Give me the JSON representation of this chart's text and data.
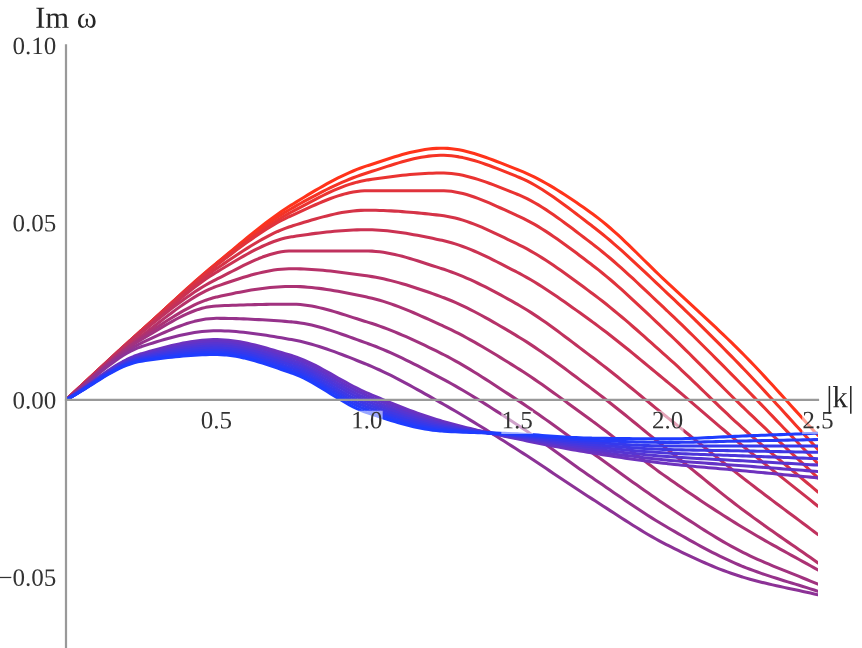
{
  "chart_data": {
    "type": "line",
    "xlabel": "|k|",
    "ylabel": "Im ω",
    "x": [
      0,
      0.25,
      0.5,
      0.75,
      1.0,
      1.25,
      1.5,
      1.75,
      2.0,
      2.25,
      2.5
    ],
    "xlim": [
      0,
      2.5
    ],
    "ylim": [
      -0.07,
      0.1
    ],
    "xticks": [
      {
        "value": 0.5,
        "label": "0.5"
      },
      {
        "value": 1.0,
        "label": "1.0"
      },
      {
        "value": 1.5,
        "label": "1.5"
      },
      {
        "value": 2.0,
        "label": "2.0"
      },
      {
        "value": 2.5,
        "label": "2.5"
      }
    ],
    "yticks": [
      {
        "value": -0.05,
        "label": "−0.05"
      },
      {
        "value": 0.0,
        "label": "0.00"
      },
      {
        "value": 0.05,
        "label": "0.05"
      },
      {
        "value": 0.1,
        "label": "0.10"
      }
    ],
    "grid": false,
    "legend": false,
    "marker": "none",
    "line_style": "solid",
    "series": [
      {
        "color": "#ff331a",
        "values": [
          0,
          0.0195,
          0.0385,
          0.055,
          0.066,
          0.071,
          0.065,
          0.0525,
          0.033,
          0.013,
          -0.01
        ]
      },
      {
        "color": "#f53325",
        "values": [
          0,
          0.0195,
          0.0385,
          0.054,
          0.064,
          0.069,
          0.063,
          0.049,
          0.03,
          0.009,
          -0.014
        ]
      },
      {
        "color": "#ea3331",
        "values": [
          0,
          0.0195,
          0.038,
          0.053,
          0.062,
          0.064,
          0.058,
          0.044,
          0.025,
          0.004,
          -0.018
        ]
      },
      {
        "color": "#e0333c",
        "values": [
          0,
          0.0195,
          0.038,
          0.052,
          0.059,
          0.059,
          0.052,
          0.038,
          0.019,
          -0.002,
          -0.022
        ]
      },
      {
        "color": "#d53347",
        "values": [
          0,
          0.0195,
          0.037,
          0.049,
          0.0535,
          0.052,
          0.044,
          0.03,
          0.012,
          -0.008,
          -0.026
        ]
      },
      {
        "color": "#cb3252",
        "values": [
          0,
          0.019,
          0.036,
          0.046,
          0.048,
          0.045,
          0.036,
          0.022,
          0.005,
          -0.013,
          -0.03
        ]
      },
      {
        "color": "#c0325e",
        "values": [
          0,
          0.019,
          0.034,
          0.042,
          0.042,
          0.037,
          0.027,
          0.012,
          -0.005,
          -0.022,
          -0.038
        ]
      },
      {
        "color": "#b63269",
        "values": [
          0,
          0.018,
          0.032,
          0.037,
          0.035,
          0.029,
          0.018,
          0.003,
          -0.014,
          -0.031,
          -0.046
        ]
      },
      {
        "color": "#ab3274",
        "values": [
          0,
          0.0175,
          0.029,
          0.032,
          0.029,
          0.021,
          0.009,
          -0.006,
          -0.022,
          -0.036,
          -0.048
        ]
      },
      {
        "color": "#a1327f",
        "values": [
          0,
          0.017,
          0.0265,
          0.027,
          0.022,
          0.013,
          0.0,
          -0.015,
          -0.03,
          -0.043,
          -0.052
        ]
      },
      {
        "color": "#96328b",
        "values": [
          0,
          0.016,
          0.023,
          0.022,
          0.016,
          0.006,
          -0.007,
          -0.022,
          -0.036,
          -0.047,
          -0.054
        ]
      },
      {
        "color": "#8c3296",
        "values": [
          0,
          0.015,
          0.0195,
          0.017,
          0.01,
          -0.001,
          -0.014,
          -0.028,
          -0.041,
          -0.05,
          -0.055
        ]
      },
      {
        "color": "#6e32be",
        "values": [
          0,
          0.013,
          0.017,
          0.0125,
          0.002,
          -0.006,
          -0.011,
          -0.015,
          -0.018,
          -0.02,
          -0.022
        ]
      },
      {
        "color": "#6333c7",
        "values": [
          0,
          0.0127,
          0.0164,
          0.0118,
          0.0012,
          -0.0064,
          -0.0108,
          -0.0144,
          -0.017,
          -0.0186,
          -0.0202
        ]
      },
      {
        "color": "#5735d1",
        "values": [
          0,
          0.0124,
          0.0158,
          0.0111,
          0.0004,
          -0.0068,
          -0.0106,
          -0.0138,
          -0.016,
          -0.0172,
          -0.0184
        ]
      },
      {
        "color": "#4c36da",
        "values": [
          0,
          0.0121,
          0.0152,
          0.0104,
          -0.0004,
          -0.0072,
          -0.0104,
          -0.0132,
          -0.015,
          -0.0158,
          -0.0166
        ]
      },
      {
        "color": "#4038e3",
        "values": [
          0,
          0.0118,
          0.0146,
          0.0097,
          -0.0012,
          -0.0076,
          -0.0102,
          -0.0126,
          -0.014,
          -0.0144,
          -0.0148
        ]
      },
      {
        "color": "#3539ec",
        "values": [
          0,
          0.0115,
          0.014,
          0.009,
          -0.002,
          -0.008,
          -0.01,
          -0.012,
          -0.013,
          -0.013,
          -0.013
        ]
      },
      {
        "color": "#293bf6",
        "values": [
          0,
          0.0112,
          0.0134,
          0.0083,
          -0.0028,
          -0.0084,
          -0.0098,
          -0.0114,
          -0.012,
          -0.0116,
          -0.0112
        ]
      },
      {
        "color": "#1e3cff",
        "values": [
          0,
          0.0109,
          0.0128,
          0.0076,
          -0.0036,
          -0.0088,
          -0.0096,
          -0.0108,
          -0.011,
          -0.0102,
          -0.0094
        ]
      }
    ]
  }
}
